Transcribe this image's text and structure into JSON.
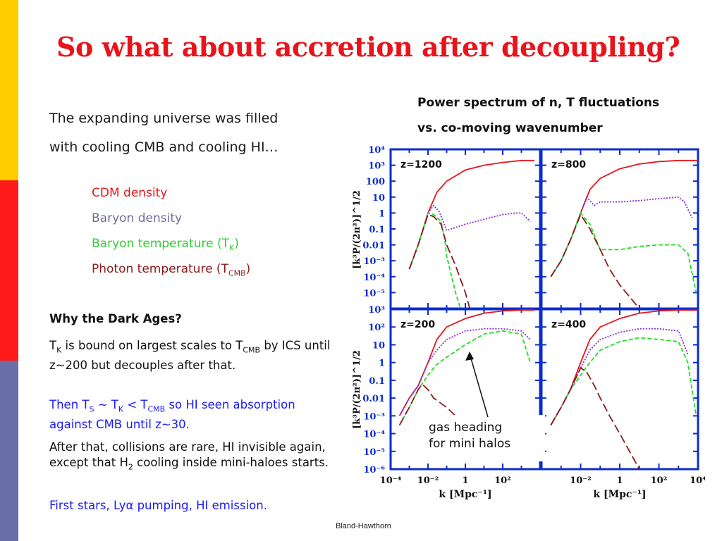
{
  "title": "So what about accretion after decoupling?",
  "intro_lines": [
    "The expanding universe was filled",
    "with cooling CMB and cooling HI…"
  ],
  "legend_items": [
    {
      "text": "CDM density",
      "sub": "",
      "suffix": "",
      "color": "#e8141b"
    },
    {
      "text": "Baryon density",
      "sub": "",
      "suffix": "",
      "color": "#6e6ea0"
    },
    {
      "text": "Baryon temperature (T",
      "sub": "K",
      "suffix": ")",
      "color": "#33cc33"
    },
    {
      "text": "Photon temperature (T",
      "sub": "CMB",
      "suffix": ")",
      "color": "#8b1a1a"
    }
  ],
  "dark_ages": {
    "heading": "Why the Dark Ages?",
    "p1": {
      "a": "T",
      "sub1": "K",
      "b": " is bound on largest scales to T",
      "sub2": "CMB",
      "c": " by ICS until z~200 but decouples after that."
    },
    "p2": {
      "a": "Then T",
      "sub1": "S",
      "b": " ~ T",
      "sub2": "K",
      "c": " < T",
      "sub3": "CMB",
      "d": " so HI seen absorption against CMB until z~30."
    },
    "p3": {
      "a": "After that, collisions are rare, HI invisible again, except that H",
      "sub1": "2",
      "b": " cooling inside mini-haloes starts."
    },
    "p4": "First stars, Lyα pumping, HI emission."
  },
  "chart_title_lines": [
    "Power spectrum of n, T fluctuations",
    "vs. co-moving wavenumber"
  ],
  "annotation_lines": [
    "gas heading",
    "for mini halos"
  ],
  "credit": "Bland-Hawthorn",
  "colors": {
    "title": "#e8141b",
    "strip_yellow": "#ffcc00",
    "strip_red": "#ff1a1a",
    "strip_blue": "#6a6ea8",
    "frame": "#0a2dcc",
    "cdm": "#e8141b",
    "baryon": "#8a2be2",
    "temp_baryon": "#22dd22",
    "temp_photon": "#8b1a1a",
    "blue_text": "#1a1aff"
  },
  "chart_data": {
    "type": "line",
    "xlabel": "k [Mpc⁻¹]",
    "ylabel": "[k³P/(2π²)]^1/2",
    "x_scale": "log",
    "y_scale": "log",
    "xlim": [
      0.0001,
      10000
    ],
    "x_ticks": [
      "10⁻⁴",
      "10⁻²",
      "1",
      "10²",
      "10⁴"
    ],
    "panels": [
      {
        "label": "z=1200",
        "ylim": [
          1e-06,
          10000.0
        ],
        "y_ticks": [
          "10⁴",
          "10³",
          "100",
          "10",
          "1",
          "0.1",
          "0.01",
          "10⁻³",
          "10⁻⁴",
          "10⁻⁵"
        ],
        "series": [
          {
            "kind": "cdm",
            "x": [
              0.001,
              0.003,
              0.01,
              0.03,
              0.1,
              1,
              10,
              100,
              1000,
              5000
            ],
            "y": [
              0.0003,
              0.01,
              1,
              20,
              100,
              500,
              1000,
              1500,
              2000,
              2000
            ]
          },
          {
            "kind": "baryon",
            "x": [
              0.001,
              0.003,
              0.01,
              0.02,
              0.04,
              0.1,
              1,
              10,
              100,
              500,
              1000,
              3000
            ],
            "y": [
              0.0003,
              0.01,
              1,
              3,
              1.2,
              0.08,
              0.2,
              0.4,
              0.8,
              1,
              1,
              0.3
            ]
          },
          {
            "kind": "temp_baryon",
            "x": [
              0.001,
              0.003,
              0.01,
              0.02,
              0.05,
              0.08,
              0.1,
              0.3,
              1,
              3,
              10
            ],
            "y": [
              0.0003,
              0.01,
              1,
              0.8,
              0.3,
              0.02,
              0.002,
              1e-05,
              1e-07,
              1e-09,
              1e-11
            ]
          },
          {
            "kind": "temp_photon",
            "x": [
              0.001,
              0.003,
              0.01,
              0.02,
              0.05,
              0.1,
              0.3,
              1,
              3,
              10
            ],
            "y": [
              0.0003,
              0.01,
              0.8,
              0.6,
              0.2,
              0.01,
              0.0005,
              1e-05,
              1e-07,
              1e-09
            ]
          }
        ]
      },
      {
        "label": "z=800",
        "ylim": [
          1e-06,
          10000.0
        ],
        "y_ticks": [],
        "series": [
          {
            "kind": "cdm",
            "x": [
              0.0003,
              0.001,
              0.003,
              0.01,
              0.03,
              0.1,
              1,
              10,
              100,
              1000,
              10000
            ],
            "y": [
              0.0001,
              0.001,
              0.02,
              1,
              30,
              150,
              600,
              1200,
              1700,
              2000,
              2000
            ]
          },
          {
            "kind": "baryon",
            "x": [
              0.0003,
              0.001,
              0.003,
              0.01,
              0.02,
              0.05,
              0.1,
              1,
              10,
              100,
              1000,
              2000,
              5000
            ],
            "y": [
              0.0001,
              0.001,
              0.02,
              1,
              10,
              3,
              5,
              5,
              6,
              8,
              10,
              5,
              0.5
            ]
          },
          {
            "kind": "temp_baryon",
            "x": [
              0.0003,
              0.001,
              0.003,
              0.01,
              0.03,
              0.1,
              1,
              10,
              100,
              1000,
              3000,
              8000
            ],
            "y": [
              0.0001,
              0.001,
              0.02,
              1,
              0.2,
              0.005,
              0.005,
              0.008,
              0.01,
              0.01,
              0.003,
              1e-05
            ]
          },
          {
            "kind": "temp_photon",
            "x": [
              0.0003,
              0.001,
              0.003,
              0.01,
              0.03,
              0.1,
              0.3,
              1,
              10,
              100
            ],
            "y": [
              0.0001,
              0.001,
              0.02,
              0.8,
              0.1,
              0.005,
              0.0003,
              3e-05,
              1e-06,
              1e-08
            ]
          }
        ]
      },
      {
        "label": "z=200",
        "ylim": [
          1e-06,
          1000.0
        ],
        "y_ticks": [
          "10³",
          "10²",
          "10",
          "1",
          "0.1",
          "0.01",
          "10⁻³",
          "10⁻⁴",
          "10⁻⁵",
          "10⁻⁶"
        ],
        "series": [
          {
            "kind": "cdm",
            "x": [
              0.0003,
              0.001,
              0.003,
              0.01,
              0.03,
              0.1,
              1,
              10,
              100,
              1000,
              5000
            ],
            "y": [
              0.001,
              0.01,
              0.05,
              1,
              20,
              100,
              300,
              600,
              800,
              900,
              900
            ]
          },
          {
            "kind": "baryon",
            "x": [
              0.0003,
              0.001,
              0.003,
              0.01,
              0.03,
              0.1,
              1,
              10,
              100,
              1000,
              3000
            ],
            "y": [
              0.001,
              0.01,
              0.05,
              1,
              5,
              20,
              60,
              80,
              80,
              60,
              20
            ]
          },
          {
            "kind": "temp_baryon",
            "x": [
              0.0003,
              0.001,
              0.003,
              0.01,
              0.03,
              0.1,
              1,
              10,
              100,
              1000,
              3000
            ],
            "y": [
              0.0003,
              0.003,
              0.03,
              0.2,
              0.8,
              2,
              10,
              40,
              60,
              40,
              1
            ]
          },
          {
            "kind": "temp_photon",
            "x": [
              0.0003,
              0.001,
              0.003,
              0.005,
              0.01,
              0.02,
              0.05,
              0.1,
              0.3
            ],
            "y": [
              0.0003,
              0.003,
              0.03,
              0.06,
              0.03,
              0.01,
              0.005,
              0.003,
              0.001
            ]
          }
        ]
      },
      {
        "label": "z=400",
        "ylim": [
          1e-06,
          1000.0
        ],
        "y_ticks": [],
        "series": [
          {
            "kind": "cdm",
            "x": [
              0.0003,
              0.001,
              0.003,
              0.01,
              0.03,
              0.1,
              1,
              10,
              100,
              1000,
              10000
            ],
            "y": [
              0.0003,
              0.003,
              0.03,
              1,
              20,
              100,
              300,
              600,
              800,
              900,
              900
            ]
          },
          {
            "kind": "baryon",
            "x": [
              0.0003,
              0.001,
              0.003,
              0.01,
              0.03,
              0.1,
              1,
              10,
              100,
              1000,
              3000
            ],
            "y": [
              0.0003,
              0.003,
              0.03,
              0.5,
              5,
              20,
              50,
              80,
              80,
              60,
              3
            ]
          },
          {
            "kind": "temp_baryon",
            "x": [
              0.0003,
              0.001,
              0.003,
              0.01,
              0.03,
              0.1,
              1,
              10,
              100,
              1000,
              3000,
              8000
            ],
            "y": [
              0.0003,
              0.003,
              0.03,
              0.2,
              1,
              5,
              15,
              25,
              20,
              15,
              1,
              0.001
            ]
          },
          {
            "kind": "temp_photon",
            "x": [
              0.0003,
              0.001,
              0.003,
              0.01,
              0.02,
              0.05,
              0.1,
              0.3,
              1,
              10,
              100
            ],
            "y": [
              0.0003,
              0.003,
              0.03,
              0.5,
              0.3,
              0.05,
              0.01,
              0.001,
              0.0001,
              1e-06,
              1e-08
            ]
          }
        ]
      }
    ]
  }
}
